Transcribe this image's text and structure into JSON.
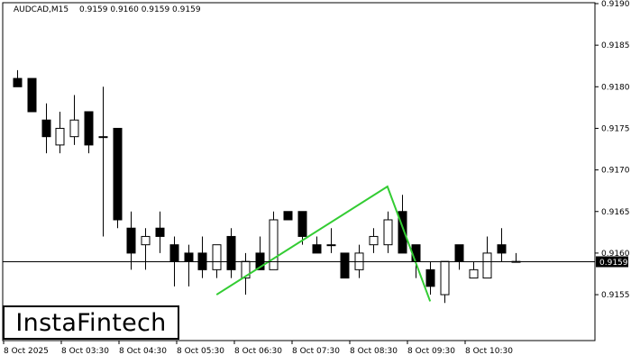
{
  "header": {
    "symbol_timeframe": "AUDCAD,M15",
    "ohlc": "0.9159 0.9160 0.9159 0.9159"
  },
  "logo": {
    "text": "InstaFintech"
  },
  "current_price_label": "0.9159",
  "colors": {
    "background": "#ffffff",
    "candle_body_bear": "#000000",
    "candle_body_bull": "#ffffff",
    "pattern_line": "#33cc33",
    "price_line": "#000000"
  },
  "chart_data": {
    "type": "candlestick",
    "title": "AUDCAD,M15",
    "ylim": [
      0.915,
      0.919
    ],
    "yticks": [
      "0.9190",
      "0.9185",
      "0.9180",
      "0.9175",
      "0.9170",
      "0.9165",
      "0.9160",
      "0.9155"
    ],
    "xticks": [
      "8 Oct 2025",
      "8 Oct 03:30",
      "8 Oct 04:30",
      "8 Oct 05:30",
      "8 Oct 06:30",
      "8 Oct 07:30",
      "8 Oct 08:30",
      "8 Oct 09:30",
      "8 Oct 10:30"
    ],
    "current_price": 0.9159,
    "candles": [
      {
        "o": 0.9181,
        "h": 0.9182,
        "l": 0.918,
        "c": 0.918
      },
      {
        "o": 0.9181,
        "h": 0.9181,
        "l": 0.9177,
        "c": 0.9177
      },
      {
        "o": 0.9176,
        "h": 0.9178,
        "l": 0.9172,
        "c": 0.9174
      },
      {
        "o": 0.9173,
        "h": 0.9177,
        "l": 0.9172,
        "c": 0.9175
      },
      {
        "o": 0.9174,
        "h": 0.9179,
        "l": 0.9173,
        "c": 0.9176
      },
      {
        "o": 0.9177,
        "h": 0.9177,
        "l": 0.9172,
        "c": 0.9173
      },
      {
        "o": 0.9174,
        "h": 0.918,
        "l": 0.9162,
        "c": 0.9174
      },
      {
        "o": 0.9175,
        "h": 0.9175,
        "l": 0.9163,
        "c": 0.9164
      },
      {
        "o": 0.9163,
        "h": 0.9165,
        "l": 0.9158,
        "c": 0.916
      },
      {
        "o": 0.9161,
        "h": 0.9163,
        "l": 0.9158,
        "c": 0.9162
      },
      {
        "o": 0.9163,
        "h": 0.9165,
        "l": 0.916,
        "c": 0.9162
      },
      {
        "o": 0.9161,
        "h": 0.9162,
        "l": 0.9156,
        "c": 0.9159
      },
      {
        "o": 0.916,
        "h": 0.9161,
        "l": 0.9156,
        "c": 0.9159
      },
      {
        "o": 0.916,
        "h": 0.9162,
        "l": 0.9157,
        "c": 0.9158
      },
      {
        "o": 0.9158,
        "h": 0.9161,
        "l": 0.9157,
        "c": 0.9161
      },
      {
        "o": 0.9162,
        "h": 0.9163,
        "l": 0.9157,
        "c": 0.9158
      },
      {
        "o": 0.9157,
        "h": 0.916,
        "l": 0.9155,
        "c": 0.9159
      },
      {
        "o": 0.916,
        "h": 0.9162,
        "l": 0.9158,
        "c": 0.9158
      },
      {
        "o": 0.9158,
        "h": 0.9165,
        "l": 0.9158,
        "c": 0.9164
      },
      {
        "o": 0.9165,
        "h": 0.9165,
        "l": 0.9164,
        "c": 0.9164
      },
      {
        "o": 0.9165,
        "h": 0.9165,
        "l": 0.9161,
        "c": 0.9162
      },
      {
        "o": 0.9161,
        "h": 0.9162,
        "l": 0.916,
        "c": 0.916
      },
      {
        "o": 0.9161,
        "h": 0.9163,
        "l": 0.916,
        "c": 0.9161
      },
      {
        "o": 0.916,
        "h": 0.916,
        "l": 0.9157,
        "c": 0.9157
      },
      {
        "o": 0.9158,
        "h": 0.9161,
        "l": 0.9157,
        "c": 0.916
      },
      {
        "o": 0.9161,
        "h": 0.9163,
        "l": 0.916,
        "c": 0.9162
      },
      {
        "o": 0.9161,
        "h": 0.9165,
        "l": 0.916,
        "c": 0.9164
      },
      {
        "o": 0.9165,
        "h": 0.9167,
        "l": 0.916,
        "c": 0.916
      },
      {
        "o": 0.9161,
        "h": 0.9161,
        "l": 0.9157,
        "c": 0.9159
      },
      {
        "o": 0.9158,
        "h": 0.9159,
        "l": 0.9155,
        "c": 0.9156
      },
      {
        "o": 0.9155,
        "h": 0.9159,
        "l": 0.9154,
        "c": 0.9159
      },
      {
        "o": 0.9161,
        "h": 0.9161,
        "l": 0.9158,
        "c": 0.9159
      },
      {
        "o": 0.9157,
        "h": 0.9159,
        "l": 0.9157,
        "c": 0.9158
      },
      {
        "o": 0.9157,
        "h": 0.9162,
        "l": 0.9157,
        "c": 0.916
      },
      {
        "o": 0.9161,
        "h": 0.9163,
        "l": 0.9159,
        "c": 0.916
      },
      {
        "o": 0.9159,
        "h": 0.916,
        "l": 0.9159,
        "c": 0.9159
      }
    ],
    "pattern": [
      {
        "candle": 14,
        "price": 0.9155
      },
      {
        "candle": 26,
        "price": 0.9168
      },
      {
        "candle": 29,
        "price": 0.91542
      }
    ],
    "grid": false
  }
}
